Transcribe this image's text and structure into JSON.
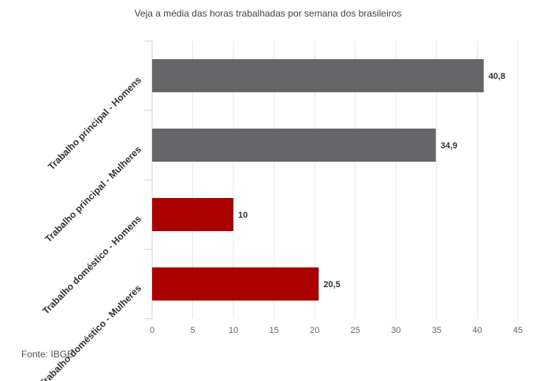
{
  "chart_data": {
    "type": "bar",
    "orientation": "horizontal",
    "title": "Veja a média das horas trabalhadas por semana dos brasileiros",
    "categories": [
      "Trabalho principal - Homens",
      "Trabalho principal - Mulheres",
      "Trabalho doméstico - Homens",
      "Trabalho doméstico - Mulheres"
    ],
    "values": [
      40.8,
      34.9,
      10,
      20.5
    ],
    "value_labels": [
      "40,8",
      "34,9",
      "10",
      "20,5"
    ],
    "bar_colors": [
      "#666567",
      "#666567",
      "#aa0000",
      "#aa0000"
    ],
    "xlim": [
      0,
      45
    ],
    "xticks": [
      0,
      5,
      10,
      15,
      20,
      25,
      30,
      35,
      40,
      45
    ],
    "xlabel": "",
    "ylabel": "",
    "grid": true
  },
  "footer": {
    "source": "Fonte: IBGE"
  }
}
